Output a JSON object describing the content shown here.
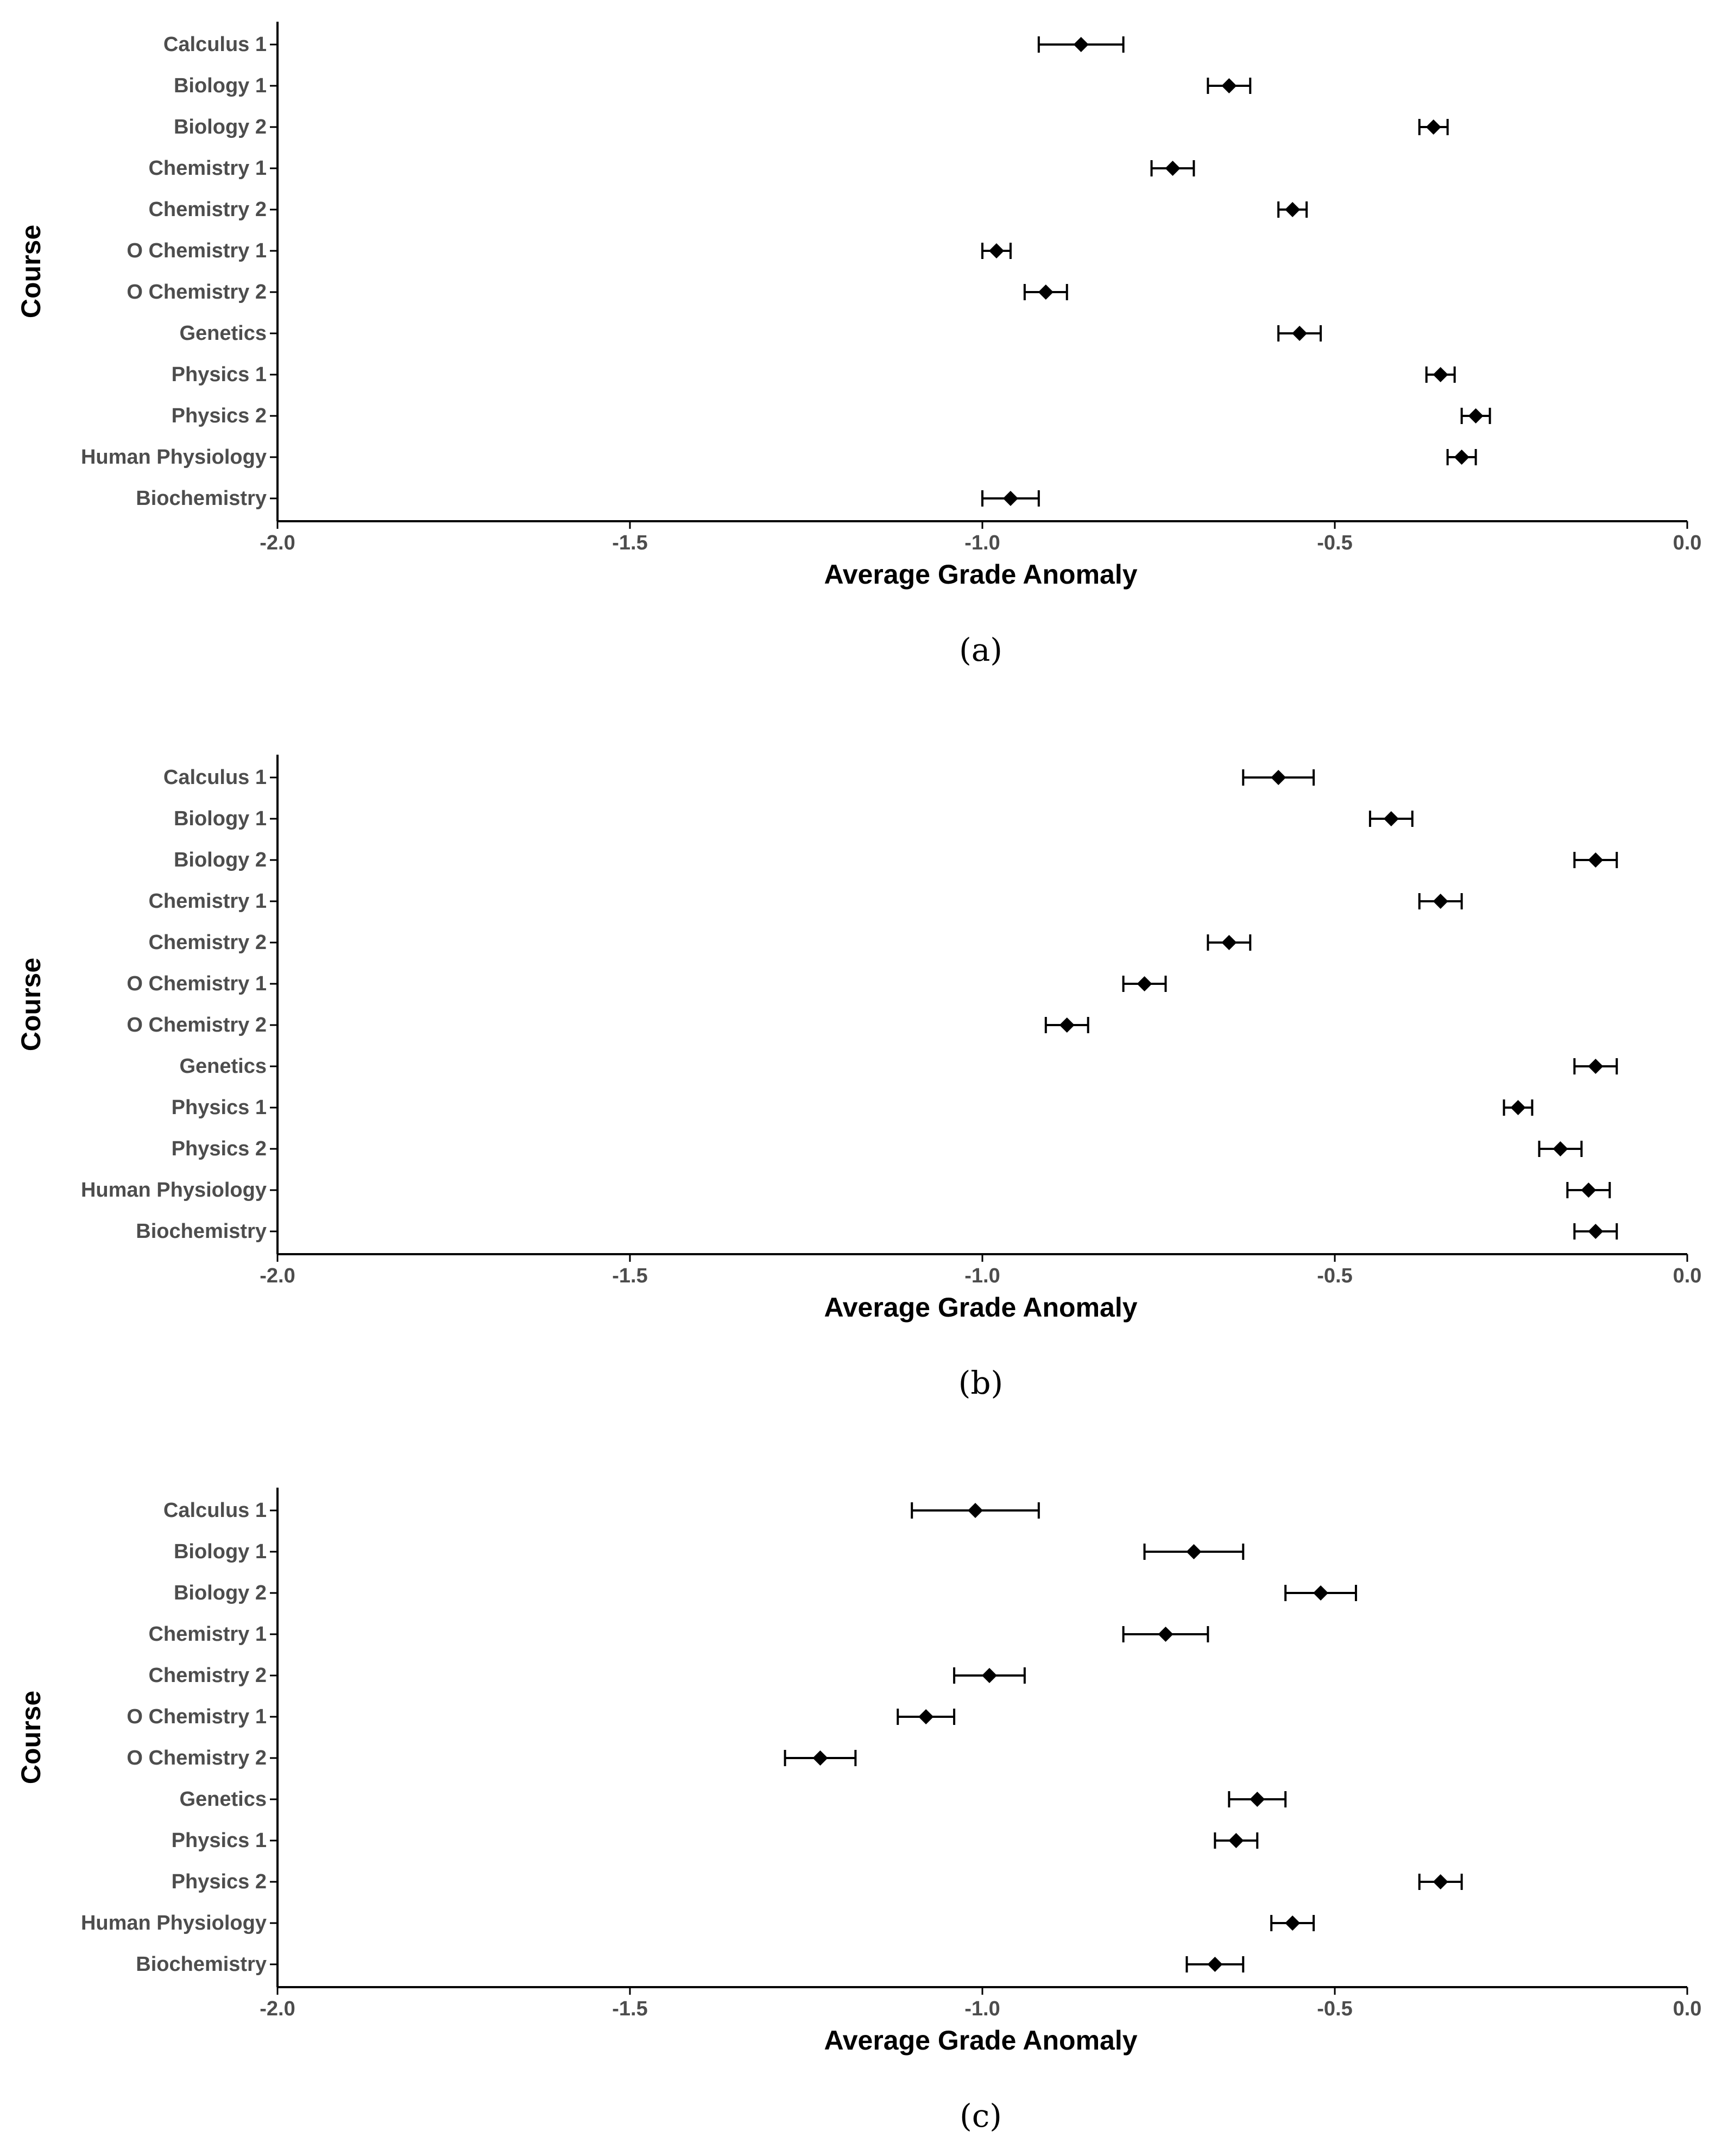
{
  "chart_data": [
    {
      "type": "errorbar",
      "caption": "(a)",
      "xlabel": "Average Grade Anomaly",
      "ylabel": "Course",
      "xlim": [
        -2.0,
        0.0
      ],
      "xticks": [
        -2.0,
        -1.5,
        -1.0,
        -0.5,
        0.0
      ],
      "xtick_labels": [
        "-2.0",
        "-1.5",
        "-1.0",
        "-0.5",
        "0.0"
      ],
      "grid": false,
      "categories": [
        "Calculus 1",
        "Biology 1",
        "Biology 2",
        "Chemistry 1",
        "Chemistry 2",
        "O Chemistry 1",
        "O Chemistry 2",
        "Genetics",
        "Physics 1",
        "Physics 2",
        "Human Physiology",
        "Biochemistry"
      ],
      "values": [
        -0.86,
        -0.65,
        -0.36,
        -0.73,
        -0.56,
        -0.98,
        -0.91,
        -0.55,
        -0.35,
        -0.3,
        -0.32,
        -0.96
      ],
      "lower": [
        -0.92,
        -0.68,
        -0.38,
        -0.76,
        -0.58,
        -1.0,
        -0.94,
        -0.58,
        -0.37,
        -0.32,
        -0.34,
        -1.0
      ],
      "upper": [
        -0.8,
        -0.62,
        -0.34,
        -0.7,
        -0.54,
        -0.96,
        -0.88,
        -0.52,
        -0.33,
        -0.28,
        -0.3,
        -0.92
      ]
    },
    {
      "type": "errorbar",
      "caption": "(b)",
      "xlabel": "Average Grade Anomaly",
      "ylabel": "Course",
      "xlim": [
        -2.0,
        0.0
      ],
      "xticks": [
        -2.0,
        -1.5,
        -1.0,
        -0.5,
        0.0
      ],
      "xtick_labels": [
        "-2.0",
        "-1.5",
        "-1.0",
        "-0.5",
        "0.0"
      ],
      "grid": false,
      "categories": [
        "Calculus 1",
        "Biology 1",
        "Biology 2",
        "Chemistry 1",
        "Chemistry 2",
        "O Chemistry 1",
        "O Chemistry 2",
        "Genetics",
        "Physics 1",
        "Physics 2",
        "Human Physiology",
        "Biochemistry"
      ],
      "values": [
        -0.58,
        -0.42,
        -0.13,
        -0.35,
        -0.65,
        -0.77,
        -0.88,
        -0.13,
        -0.24,
        -0.18,
        -0.14,
        -0.13
      ],
      "lower": [
        -0.63,
        -0.45,
        -0.16,
        -0.38,
        -0.68,
        -0.8,
        -0.91,
        -0.16,
        -0.26,
        -0.21,
        -0.17,
        -0.16
      ],
      "upper": [
        -0.53,
        -0.39,
        -0.1,
        -0.32,
        -0.62,
        -0.74,
        -0.85,
        -0.1,
        -0.22,
        -0.15,
        -0.11,
        -0.1
      ]
    },
    {
      "type": "errorbar",
      "caption": "(c)",
      "xlabel": "Average Grade Anomaly",
      "ylabel": "Course",
      "xlim": [
        -2.0,
        0.0
      ],
      "xticks": [
        -2.0,
        -1.5,
        -1.0,
        -0.5,
        0.0
      ],
      "xtick_labels": [
        "-2.0",
        "-1.5",
        "-1.0",
        "-0.5",
        "0.0"
      ],
      "grid": false,
      "categories": [
        "Calculus 1",
        "Biology 1",
        "Biology 2",
        "Chemistry 1",
        "Chemistry 2",
        "O Chemistry 1",
        "O Chemistry 2",
        "Genetics",
        "Physics 1",
        "Physics 2",
        "Human Physiology",
        "Biochemistry"
      ],
      "values": [
        -1.01,
        -0.7,
        -0.52,
        -0.74,
        -0.99,
        -1.08,
        -1.23,
        -0.61,
        -0.64,
        -0.35,
        -0.56,
        -0.67
      ],
      "lower": [
        -1.1,
        -0.77,
        -0.57,
        -0.8,
        -1.04,
        -1.12,
        -1.28,
        -0.65,
        -0.67,
        -0.38,
        -0.59,
        -0.71
      ],
      "upper": [
        -0.92,
        -0.63,
        -0.47,
        -0.68,
        -0.94,
        -1.04,
        -1.18,
        -0.57,
        -0.61,
        -0.32,
        -0.53,
        -0.63
      ]
    }
  ],
  "colors": {
    "marker": "#000000",
    "axis": "#000000",
    "tick_text": "#4d4d4d",
    "title_text": "#000000"
  }
}
